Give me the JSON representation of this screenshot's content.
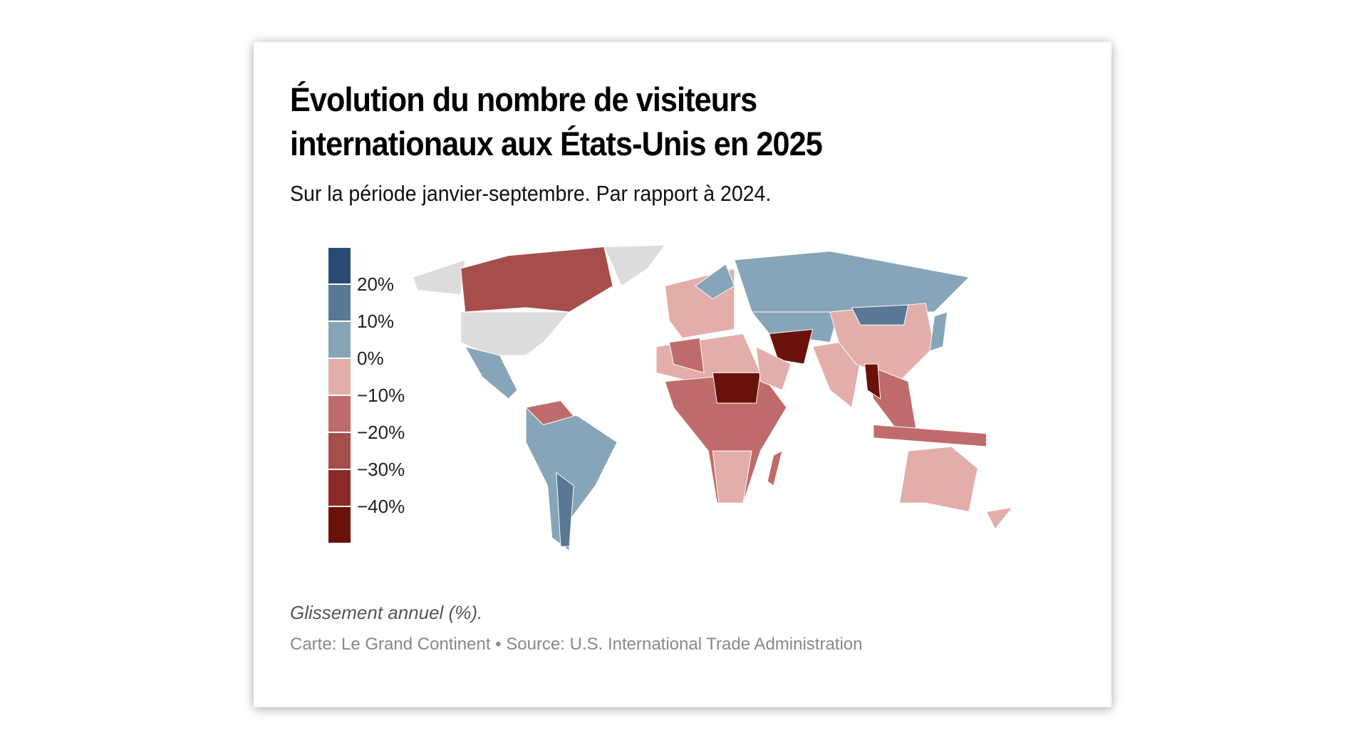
{
  "title": "Évolution du nombre de visiteurs internationaux aux États-Unis en 2025",
  "subtitle": "Sur la période janvier-septembre. Par rapport à 2024.",
  "note": "Glissement annuel (%).",
  "source": "Carte: Le Grand Continent • Source: U.S. International Trade Administration",
  "legend": {
    "bins": [
      {
        "color": "#2a4a75"
      },
      {
        "color": "#587895",
        "label": "20%"
      },
      {
        "color": "#86a5b8",
        "label": "10%"
      },
      {
        "color": "#e3aeaa",
        "label": "0%"
      },
      {
        "color": "#c06b6b",
        "label": "−10%"
      },
      {
        "color": "#a54e4b",
        "label": "−20%"
      },
      {
        "color": "#8b2a27",
        "label": "−30%"
      },
      {
        "color": "#6a1209",
        "label": "−40%"
      }
    ],
    "no_data_color": "#dcdcdc"
  }
}
